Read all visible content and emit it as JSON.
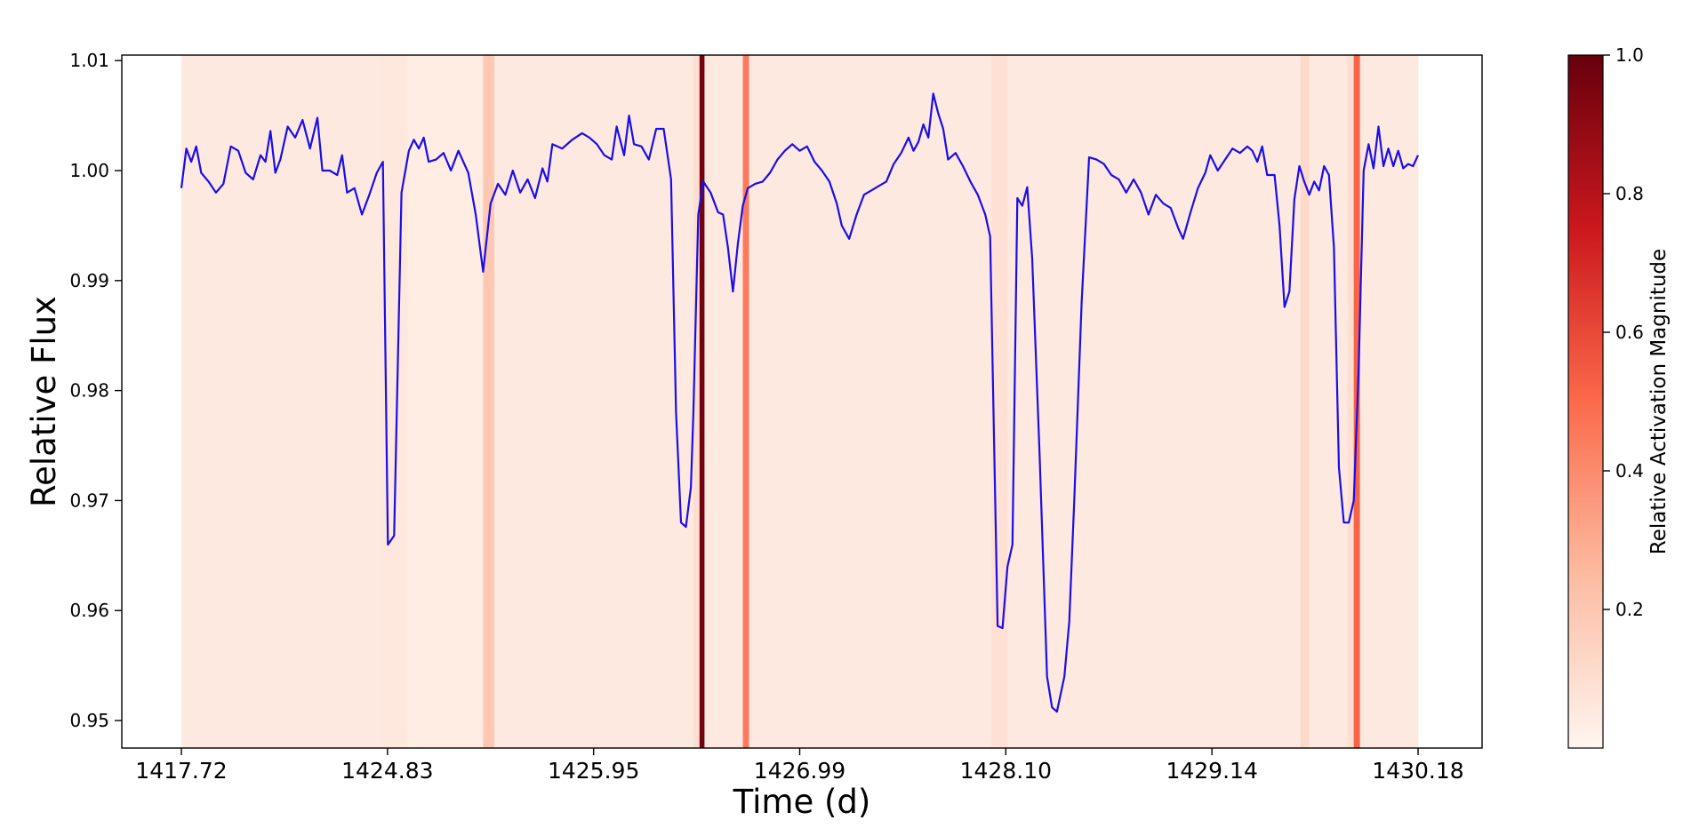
{
  "chart_data": {
    "type": "line",
    "title": "",
    "xlabel": "Time (d)",
    "ylabel": "Relative Flux",
    "colorbar_label": "Relative Activation Magnitude",
    "x_tick_labels": [
      "1417.72",
      "1424.83",
      "1425.95",
      "1426.99",
      "1428.10",
      "1429.14",
      "1430.18"
    ],
    "y_ticks": [
      0.95,
      0.96,
      0.97,
      0.98,
      0.99,
      1.0,
      1.01
    ],
    "y_tick_labels": [
      "0.95",
      "0.96",
      "0.97",
      "0.98",
      "0.99",
      "1.00",
      "1.01"
    ],
    "ylim": [
      0.9475,
      1.0105
    ],
    "colorbar_ticks": [
      0.2,
      0.4,
      0.6,
      0.8,
      1.0
    ],
    "colorbar_tick_labels": [
      "0.2",
      "0.4",
      "0.6",
      "0.8",
      "1.0"
    ],
    "colorbar_range": [
      0.0,
      1.0
    ],
    "grid": false,
    "line_color": "#1a0ee8",
    "colormap": [
      "#fff5f0",
      "#fcbba1",
      "#fb6a4a",
      "#cb181d",
      "#67000d"
    ],
    "series": [
      {
        "name": "",
        "keypoints": [
          [
            0.0,
            0.9984
          ],
          [
            0.004,
            1.002
          ],
          [
            0.008,
            1.0008
          ],
          [
            0.012,
            1.0022
          ],
          [
            0.016,
            0.9998
          ],
          [
            0.022,
            0.999
          ],
          [
            0.028,
            0.998
          ],
          [
            0.034,
            0.9988
          ],
          [
            0.04,
            1.0022
          ],
          [
            0.046,
            1.0018
          ],
          [
            0.052,
            0.9998
          ],
          [
            0.058,
            0.9992
          ],
          [
            0.064,
            1.0014
          ],
          [
            0.068,
            1.0008
          ],
          [
            0.072,
            1.0036
          ],
          [
            0.076,
            0.9998
          ],
          [
            0.08,
            1.001
          ],
          [
            0.086,
            1.004
          ],
          [
            0.092,
            1.003
          ],
          [
            0.098,
            1.0046
          ],
          [
            0.104,
            1.002
          ],
          [
            0.11,
            1.0048
          ],
          [
            0.114,
            1.0
          ],
          [
            0.12,
            1.0
          ],
          [
            0.126,
            0.9996
          ],
          [
            0.13,
            1.0014
          ],
          [
            0.134,
            0.998
          ],
          [
            0.14,
            0.9984
          ],
          [
            0.146,
            0.996
          ],
          [
            0.152,
            0.9978
          ],
          [
            0.158,
            0.9998
          ],
          [
            0.163,
            1.0008
          ],
          [
            0.167,
            0.966
          ],
          [
            0.172,
            0.9668
          ],
          [
            0.178,
            0.998
          ],
          [
            0.184,
            1.0018
          ],
          [
            0.188,
            1.0028
          ],
          [
            0.192,
            1.002
          ],
          [
            0.196,
            1.003
          ],
          [
            0.2,
            1.0008
          ],
          [
            0.206,
            1.001
          ],
          [
            0.212,
            1.0016
          ],
          [
            0.218,
            1.0
          ],
          [
            0.224,
            1.0018
          ],
          [
            0.232,
            0.9998
          ],
          [
            0.238,
            0.996
          ],
          [
            0.244,
            0.9908
          ],
          [
            0.25,
            0.997
          ],
          [
            0.256,
            0.9988
          ],
          [
            0.262,
            0.9978
          ],
          [
            0.268,
            1.0
          ],
          [
            0.274,
            0.998
          ],
          [
            0.28,
            0.9992
          ],
          [
            0.286,
            0.9975
          ],
          [
            0.292,
            1.0002
          ],
          [
            0.296,
            0.999
          ],
          [
            0.3,
            1.0024
          ],
          [
            0.308,
            1.002
          ],
          [
            0.316,
            1.0028
          ],
          [
            0.324,
            1.0034
          ],
          [
            0.33,
            1.003
          ],
          [
            0.336,
            1.0024
          ],
          [
            0.342,
            1.0014
          ],
          [
            0.348,
            1.001
          ],
          [
            0.352,
            1.004
          ],
          [
            0.358,
            1.0014
          ],
          [
            0.362,
            1.005
          ],
          [
            0.366,
            1.0024
          ],
          [
            0.372,
            1.0022
          ],
          [
            0.378,
            1.001
          ],
          [
            0.384,
            1.0038
          ],
          [
            0.39,
            1.0038
          ],
          [
            0.396,
            0.9992
          ],
          [
            0.4,
            0.978
          ],
          [
            0.404,
            0.968
          ],
          [
            0.408,
            0.9676
          ],
          [
            0.412,
            0.9712
          ],
          [
            0.414,
            0.978
          ],
          [
            0.418,
            0.996
          ],
          [
            0.422,
            0.999
          ],
          [
            0.428,
            0.998
          ],
          [
            0.434,
            0.9962
          ],
          [
            0.438,
            0.996
          ],
          [
            0.442,
            0.993
          ],
          [
            0.446,
            0.989
          ],
          [
            0.45,
            0.9934
          ],
          [
            0.454,
            0.9968
          ],
          [
            0.458,
            0.9984
          ],
          [
            0.464,
            0.9988
          ],
          [
            0.47,
            0.999
          ],
          [
            0.476,
            0.9998
          ],
          [
            0.482,
            1.001
          ],
          [
            0.488,
            1.0018
          ],
          [
            0.494,
            1.0024
          ],
          [
            0.5,
            1.0018
          ],
          [
            0.506,
            1.0022
          ],
          [
            0.512,
            1.0008
          ],
          [
            0.518,
            1.0
          ],
          [
            0.524,
            0.999
          ],
          [
            0.53,
            0.997
          ],
          [
            0.534,
            0.995
          ],
          [
            0.54,
            0.9938
          ],
          [
            0.546,
            0.996
          ],
          [
            0.552,
            0.9978
          ],
          [
            0.558,
            0.9982
          ],
          [
            0.564,
            0.9986
          ],
          [
            0.57,
            0.999
          ],
          [
            0.576,
            1.0006
          ],
          [
            0.582,
            1.0016
          ],
          [
            0.588,
            1.003
          ],
          [
            0.592,
            1.0018
          ],
          [
            0.596,
            1.0026
          ],
          [
            0.6,
            1.0042
          ],
          [
            0.604,
            1.003
          ],
          [
            0.608,
            1.007
          ],
          [
            0.612,
            1.0052
          ],
          [
            0.616,
            1.0038
          ],
          [
            0.62,
            1.001
          ],
          [
            0.626,
            1.0016
          ],
          [
            0.632,
            1.0004
          ],
          [
            0.638,
            0.999
          ],
          [
            0.644,
            0.9978
          ],
          [
            0.65,
            0.996
          ],
          [
            0.654,
            0.994
          ],
          [
            0.66,
            0.9586
          ],
          [
            0.664,
            0.9584
          ],
          [
            0.668,
            0.964
          ],
          [
            0.672,
            0.966
          ],
          [
            0.676,
            0.9975
          ],
          [
            0.68,
            0.9968
          ],
          [
            0.684,
            0.9985
          ],
          [
            0.688,
            0.992
          ],
          [
            0.694,
            0.974
          ],
          [
            0.7,
            0.954
          ],
          [
            0.704,
            0.9512
          ],
          [
            0.708,
            0.9508
          ],
          [
            0.714,
            0.954
          ],
          [
            0.718,
            0.959
          ],
          [
            0.722,
            0.97
          ],
          [
            0.728,
            0.988
          ],
          [
            0.734,
            1.0012
          ],
          [
            0.74,
            1.001
          ],
          [
            0.746,
            1.0006
          ],
          [
            0.752,
            0.9996
          ],
          [
            0.758,
            0.9992
          ],
          [
            0.764,
            0.998
          ],
          [
            0.77,
            0.9992
          ],
          [
            0.776,
            0.998
          ],
          [
            0.782,
            0.996
          ],
          [
            0.788,
            0.9978
          ],
          [
            0.794,
            0.997
          ],
          [
            0.8,
            0.9966
          ],
          [
            0.806,
            0.9948
          ],
          [
            0.81,
            0.9938
          ],
          [
            0.816,
            0.9962
          ],
          [
            0.822,
            0.9984
          ],
          [
            0.828,
            0.9998
          ],
          [
            0.832,
            1.0014
          ],
          [
            0.838,
            1.0
          ],
          [
            0.844,
            1.001
          ],
          [
            0.85,
            1.002
          ],
          [
            0.856,
            1.0016
          ],
          [
            0.862,
            1.0022
          ],
          [
            0.866,
            1.0018
          ],
          [
            0.87,
            1.0008
          ],
          [
            0.874,
            1.0022
          ],
          [
            0.878,
            0.9996
          ],
          [
            0.884,
            0.9996
          ],
          [
            0.888,
            0.995
          ],
          [
            0.892,
            0.9876
          ],
          [
            0.896,
            0.989
          ],
          [
            0.9,
            0.9974
          ],
          [
            0.904,
            1.0004
          ],
          [
            0.908,
            0.999
          ],
          [
            0.912,
            0.9978
          ],
          [
            0.916,
            0.999
          ],
          [
            0.92,
            0.9982
          ],
          [
            0.924,
            1.0004
          ],
          [
            0.928,
            0.9996
          ],
          [
            0.932,
            0.993
          ],
          [
            0.936,
            0.973
          ],
          [
            0.94,
            0.968
          ],
          [
            0.944,
            0.968
          ],
          [
            0.948,
            0.97
          ],
          [
            0.952,
            0.982
          ],
          [
            0.956,
            1.0
          ],
          [
            0.96,
            1.0024
          ],
          [
            0.964,
            1.0002
          ],
          [
            0.968,
            1.004
          ],
          [
            0.972,
            1.0004
          ],
          [
            0.976,
            1.002
          ],
          [
            0.98,
            1.0004
          ],
          [
            0.984,
            1.0018
          ],
          [
            0.988,
            1.0002
          ],
          [
            0.992,
            1.0006
          ],
          [
            0.996,
            1.0004
          ],
          [
            1.0,
            1.0014
          ]
        ]
      }
    ],
    "activation_bands": [
      {
        "x0": 0.0,
        "x1": 0.16,
        "value": 0.05
      },
      {
        "x0": 0.16,
        "x1": 0.183,
        "value": 0.06
      },
      {
        "x0": 0.183,
        "x1": 0.244,
        "value": 0.04
      },
      {
        "x0": 0.244,
        "x1": 0.253,
        "value": 0.2
      },
      {
        "x0": 0.253,
        "x1": 0.414,
        "value": 0.05
      },
      {
        "x0": 0.414,
        "x1": 0.419,
        "value": 0.1
      },
      {
        "x0": 0.419,
        "x1": 0.423,
        "value": 0.97
      },
      {
        "x0": 0.423,
        "x1": 0.454,
        "value": 0.05
      },
      {
        "x0": 0.454,
        "x1": 0.459,
        "value": 0.45
      },
      {
        "x0": 0.459,
        "x1": 0.655,
        "value": 0.05
      },
      {
        "x0": 0.655,
        "x1": 0.668,
        "value": 0.09
      },
      {
        "x0": 0.668,
        "x1": 0.905,
        "value": 0.05
      },
      {
        "x0": 0.905,
        "x1": 0.912,
        "value": 0.12
      },
      {
        "x0": 0.912,
        "x1": 0.943,
        "value": 0.05
      },
      {
        "x0": 0.943,
        "x1": 0.948,
        "value": 0.1
      },
      {
        "x0": 0.948,
        "x1": 0.953,
        "value": 0.52
      },
      {
        "x0": 0.953,
        "x1": 1.0,
        "value": 0.05
      }
    ]
  }
}
